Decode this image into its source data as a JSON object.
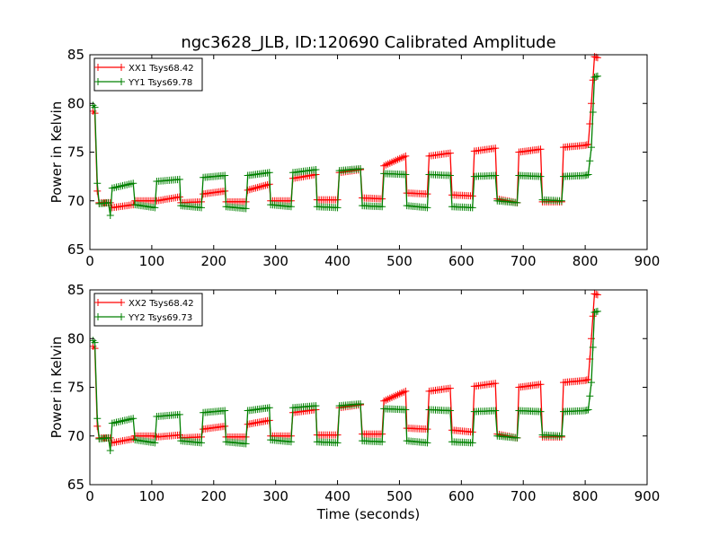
{
  "figure_title": "ngc3628_JLB, ID:120690 Calibrated Amplitude",
  "x_label": "Time (seconds)",
  "colors": {
    "red": "#ff0000",
    "green": "#008000",
    "axes": "#000000",
    "background": "#ffffff"
  },
  "chart_data": [
    {
      "type": "line",
      "title": "ngc3628_JLB, ID:120690 Calibrated Amplitude",
      "xlabel": "",
      "ylabel": "Power in Kelvin",
      "xlim": [
        0,
        900
      ],
      "ylim": [
        65,
        85
      ],
      "xticks": [
        0,
        100,
        200,
        300,
        400,
        500,
        600,
        700,
        800,
        900
      ],
      "yticks": [
        65,
        70,
        75,
        80,
        85
      ],
      "grid": false,
      "legend_position": "top-left",
      "series": [
        {
          "name": "XX1 Tsys68.42",
          "color": "#ff0000",
          "points": [
            [
              5,
              79.2
            ],
            [
              8,
              79.0
            ],
            [
              12,
              71.0
            ],
            [
              15,
              69.8
            ],
            [
              33,
              69.8
            ],
            [
              36,
              69.3
            ],
            [
              70,
              69.6
            ],
            [
              73,
              70.0
            ],
            [
              105,
              70.0
            ],
            [
              108,
              70.0
            ],
            [
              145,
              70.4
            ],
            [
              147,
              69.8
            ],
            [
              180,
              69.9
            ],
            [
              183,
              70.7
            ],
            [
              218,
              71.0
            ],
            [
              220,
              69.9
            ],
            [
              252,
              69.9
            ],
            [
              255,
              71.1
            ],
            [
              290,
              71.7
            ],
            [
              292,
              70.0
            ],
            [
              325,
              70.0
            ],
            [
              328,
              72.3
            ],
            [
              365,
              72.7
            ],
            [
              367,
              70.1
            ],
            [
              400,
              70.1
            ],
            [
              403,
              72.9
            ],
            [
              437,
              73.2
            ],
            [
              440,
              70.3
            ],
            [
              472,
              70.2
            ],
            [
              475,
              73.6
            ],
            [
              510,
              74.6
            ],
            [
              512,
              70.8
            ],
            [
              545,
              70.7
            ],
            [
              548,
              74.6
            ],
            [
              582,
              74.9
            ],
            [
              585,
              70.6
            ],
            [
              618,
              70.5
            ],
            [
              621,
              75.1
            ],
            [
              655,
              75.4
            ],
            [
              658,
              70.2
            ],
            [
              690,
              69.8
            ],
            [
              693,
              75.0
            ],
            [
              728,
              75.3
            ],
            [
              731,
              69.9
            ],
            [
              762,
              69.9
            ],
            [
              765,
              75.5
            ],
            [
              800,
              75.7
            ],
            [
              805,
              75.8
            ],
            [
              810,
              80.0
            ],
            [
              815,
              84.8
            ],
            [
              820,
              84.7
            ]
          ]
        },
        {
          "name": "YY1 Tsys69.78",
          "color": "#008000",
          "points": [
            [
              5,
              79.8
            ],
            [
              8,
              79.6
            ],
            [
              12,
              71.8
            ],
            [
              15,
              69.7
            ],
            [
              30,
              69.8
            ],
            [
              33,
              68.5
            ],
            [
              36,
              71.3
            ],
            [
              70,
              71.8
            ],
            [
              73,
              69.6
            ],
            [
              105,
              69.3
            ],
            [
              108,
              72.0
            ],
            [
              145,
              72.2
            ],
            [
              147,
              69.5
            ],
            [
              180,
              69.3
            ],
            [
              183,
              72.4
            ],
            [
              218,
              72.6
            ],
            [
              220,
              69.4
            ],
            [
              252,
              69.2
            ],
            [
              255,
              72.6
            ],
            [
              290,
              72.9
            ],
            [
              292,
              69.6
            ],
            [
              325,
              69.4
            ],
            [
              328,
              72.9
            ],
            [
              365,
              73.2
            ],
            [
              367,
              69.4
            ],
            [
              400,
              69.3
            ],
            [
              403,
              73.1
            ],
            [
              437,
              73.3
            ],
            [
              440,
              69.5
            ],
            [
              472,
              69.4
            ],
            [
              475,
              72.8
            ],
            [
              510,
              72.7
            ],
            [
              512,
              69.5
            ],
            [
              545,
              69.3
            ],
            [
              548,
              72.7
            ],
            [
              582,
              72.6
            ],
            [
              585,
              69.4
            ],
            [
              618,
              69.3
            ],
            [
              621,
              72.5
            ],
            [
              655,
              72.6
            ],
            [
              658,
              70.0
            ],
            [
              690,
              69.8
            ],
            [
              693,
              72.6
            ],
            [
              728,
              72.5
            ],
            [
              731,
              70.1
            ],
            [
              762,
              70.0
            ],
            [
              765,
              72.5
            ],
            [
              800,
              72.6
            ],
            [
              805,
              72.7
            ],
            [
              810,
              75.5
            ],
            [
              815,
              82.7
            ],
            [
              820,
              82.8
            ]
          ]
        }
      ]
    },
    {
      "type": "line",
      "title": "",
      "xlabel": "Time (seconds)",
      "ylabel": "Power in Kelvin",
      "xlim": [
        0,
        900
      ],
      "ylim": [
        65,
        85
      ],
      "xticks": [
        0,
        100,
        200,
        300,
        400,
        500,
        600,
        700,
        800,
        900
      ],
      "yticks": [
        65,
        70,
        75,
        80,
        85
      ],
      "grid": false,
      "legend_position": "top-left",
      "series": [
        {
          "name": "XX2 Tsys68.42",
          "color": "#ff0000",
          "points": [
            [
              5,
              79.2
            ],
            [
              8,
              79.0
            ],
            [
              12,
              71.0
            ],
            [
              15,
              69.8
            ],
            [
              33,
              69.8
            ],
            [
              36,
              69.3
            ],
            [
              70,
              69.7
            ],
            [
              73,
              70.0
            ],
            [
              105,
              70.0
            ],
            [
              108,
              69.9
            ],
            [
              145,
              70.1
            ],
            [
              147,
              69.8
            ],
            [
              180,
              69.9
            ],
            [
              183,
              70.7
            ],
            [
              218,
              71.0
            ],
            [
              220,
              69.9
            ],
            [
              252,
              69.9
            ],
            [
              255,
              71.2
            ],
            [
              290,
              71.6
            ],
            [
              292,
              70.0
            ],
            [
              325,
              70.0
            ],
            [
              328,
              72.4
            ],
            [
              365,
              72.7
            ],
            [
              367,
              70.1
            ],
            [
              400,
              70.1
            ],
            [
              403,
              72.9
            ],
            [
              437,
              73.2
            ],
            [
              440,
              70.2
            ],
            [
              472,
              70.2
            ],
            [
              475,
              73.6
            ],
            [
              510,
              74.6
            ],
            [
              512,
              70.8
            ],
            [
              545,
              70.7
            ],
            [
              548,
              74.6
            ],
            [
              582,
              74.9
            ],
            [
              585,
              70.6
            ],
            [
              618,
              70.4
            ],
            [
              621,
              75.1
            ],
            [
              655,
              75.4
            ],
            [
              658,
              70.2
            ],
            [
              690,
              69.8
            ],
            [
              693,
              75.0
            ],
            [
              728,
              75.3
            ],
            [
              731,
              69.9
            ],
            [
              762,
              69.9
            ],
            [
              765,
              75.5
            ],
            [
              800,
              75.7
            ],
            [
              805,
              75.8
            ],
            [
              810,
              80.0
            ],
            [
              815,
              84.6
            ],
            [
              820,
              84.5
            ]
          ]
        },
        {
          "name": "YY2 Tsys69.73",
          "color": "#008000",
          "points": [
            [
              5,
              79.8
            ],
            [
              8,
              79.6
            ],
            [
              12,
              71.8
            ],
            [
              15,
              69.7
            ],
            [
              30,
              69.8
            ],
            [
              33,
              68.5
            ],
            [
              36,
              71.3
            ],
            [
              70,
              71.8
            ],
            [
              73,
              69.6
            ],
            [
              105,
              69.3
            ],
            [
              108,
              72.0
            ],
            [
              145,
              72.2
            ],
            [
              147,
              69.5
            ],
            [
              180,
              69.3
            ],
            [
              183,
              72.4
            ],
            [
              218,
              72.6
            ],
            [
              220,
              69.4
            ],
            [
              252,
              69.2
            ],
            [
              255,
              72.6
            ],
            [
              290,
              72.9
            ],
            [
              292,
              69.6
            ],
            [
              325,
              69.4
            ],
            [
              328,
              72.9
            ],
            [
              365,
              73.1
            ],
            [
              367,
              69.4
            ],
            [
              400,
              69.3
            ],
            [
              403,
              73.1
            ],
            [
              437,
              73.3
            ],
            [
              440,
              69.5
            ],
            [
              472,
              69.4
            ],
            [
              475,
              72.8
            ],
            [
              510,
              72.7
            ],
            [
              512,
              69.5
            ],
            [
              545,
              69.3
            ],
            [
              548,
              72.7
            ],
            [
              582,
              72.6
            ],
            [
              585,
              69.4
            ],
            [
              618,
              69.3
            ],
            [
              621,
              72.5
            ],
            [
              655,
              72.6
            ],
            [
              658,
              70.0
            ],
            [
              690,
              69.8
            ],
            [
              693,
              72.6
            ],
            [
              728,
              72.5
            ],
            [
              731,
              70.1
            ],
            [
              762,
              70.0
            ],
            [
              765,
              72.5
            ],
            [
              800,
              72.6
            ],
            [
              805,
              72.7
            ],
            [
              810,
              75.5
            ],
            [
              815,
              82.7
            ],
            [
              820,
              82.8
            ]
          ]
        }
      ]
    }
  ]
}
